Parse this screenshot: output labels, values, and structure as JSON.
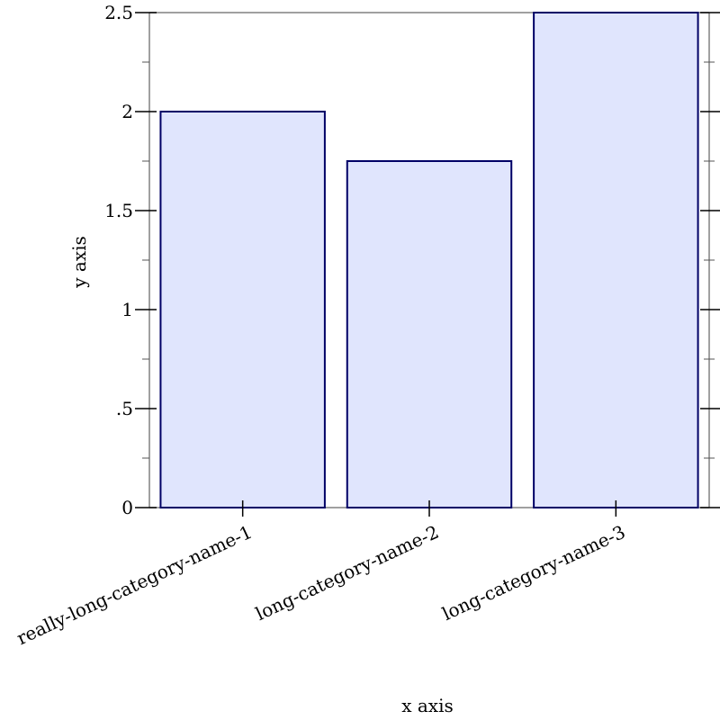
{
  "chart_data": {
    "type": "bar",
    "categories": [
      "really-long-category-name-1",
      "long-category-name-2",
      "long-category-name-3"
    ],
    "values": [
      2,
      1.75,
      2.5
    ],
    "title": "",
    "xlabel": "x axis",
    "ylabel": "y axis",
    "ylim": [
      0,
      2.5
    ],
    "yticks": [
      0,
      0.5,
      1,
      1.5,
      2,
      2.5
    ],
    "ytick_labels": [
      "0",
      ".5",
      "1",
      "1.5",
      "2",
      "2.5"
    ],
    "grid": false,
    "colors": {
      "bar_fill": "#e0e5fd",
      "bar_stroke": "#000066"
    }
  }
}
